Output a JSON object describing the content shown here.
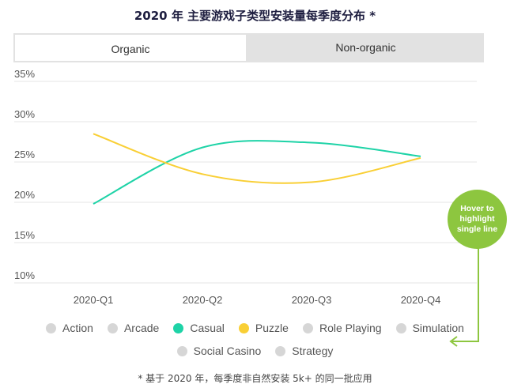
{
  "header": {
    "title": "2020 年 主要游戏子类型安装量每季度分布 *"
  },
  "tabs": [
    {
      "label": "Organic",
      "active": true
    },
    {
      "label": "Non-organic",
      "active": false
    }
  ],
  "chart_data": {
    "type": "line",
    "title": "2020 年 主要游戏子类型安装量每季度分布 *",
    "xlabel": "",
    "ylabel": "",
    "categories": [
      "2020-Q1",
      "2020-Q2",
      "2020-Q3",
      "2020-Q4"
    ],
    "y_ticks": [
      "10%",
      "15%",
      "20%",
      "25%",
      "30%",
      "35%"
    ],
    "ylim": [
      10,
      35
    ],
    "grid": true,
    "series": [
      {
        "name": "Casual",
        "color": "#1ed3a7",
        "values": [
          19.8,
          26.8,
          27.4,
          25.7
        ]
      },
      {
        "name": "Puzzle",
        "color": "#f9cf35",
        "values": [
          28.5,
          23.5,
          22.5,
          25.5
        ]
      }
    ]
  },
  "legend": {
    "items": [
      {
        "label": "Action",
        "color": "#d6d6d6"
      },
      {
        "label": "Arcade",
        "color": "#d6d6d6"
      },
      {
        "label": "Casual",
        "color": "#1ed3a7"
      },
      {
        "label": "Puzzle",
        "color": "#f9cf35"
      },
      {
        "label": "Role Playing",
        "color": "#d6d6d6"
      },
      {
        "label": "Simulation",
        "color": "#d6d6d6"
      },
      {
        "label": "Social Casino",
        "color": "#d6d6d6"
      },
      {
        "label": "Strategy",
        "color": "#d6d6d6"
      }
    ]
  },
  "hover_hint": {
    "text": "Hover to highlight single line",
    "color": "#8dc63f"
  },
  "footnote": "* 基于 2020 年，每季度非自然安装 5k+ 的同一批应用"
}
